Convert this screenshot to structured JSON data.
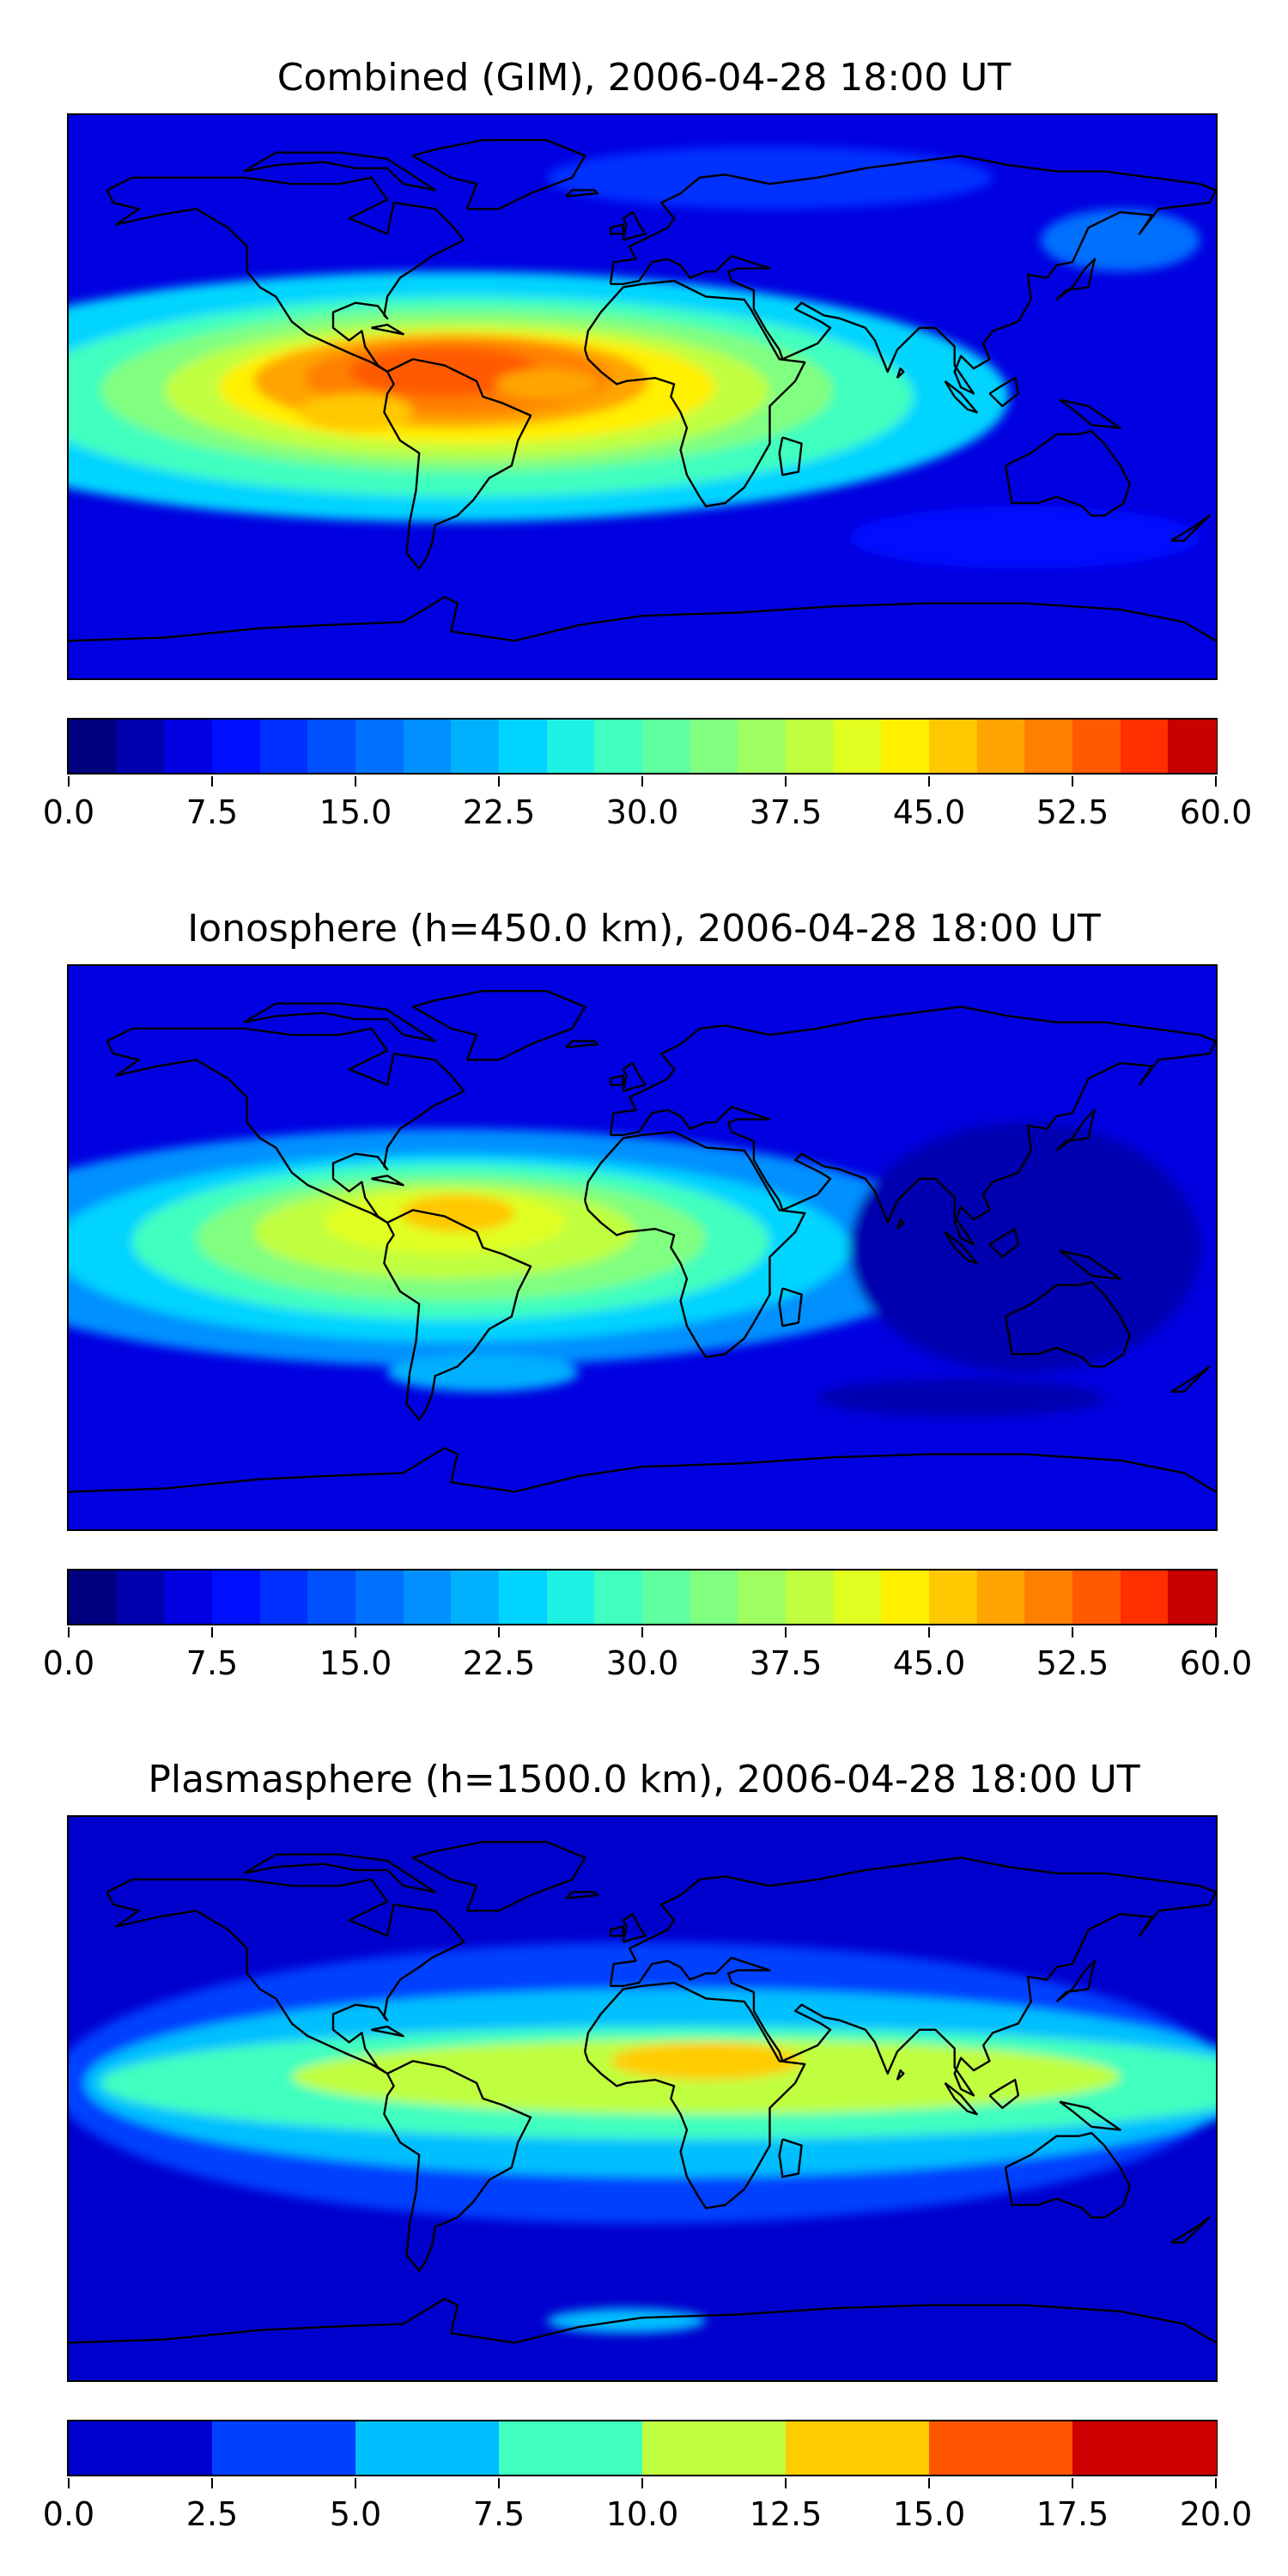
{
  "chart_data": [
    {
      "type": "heatmap",
      "title": "Combined (GIM), 2006-04-28 18:00 UT",
      "colorbar": {
        "min": 0.0,
        "max": 60.0,
        "step": 2.5,
        "ticks": [
          "0.0",
          "7.5",
          "15.0",
          "22.5",
          "30.0",
          "37.5",
          "45.0",
          "52.5",
          "60.0"
        ]
      },
      "grid": false,
      "regions": [
        {
          "label": "peak over northern South America",
          "value": 52
        },
        {
          "label": "equatorial Atlantic",
          "value": 45
        },
        {
          "label": "eastern Pacific west of South America",
          "value": 37
        },
        {
          "label": "background (Asia-Pacific, poles)",
          "value": 10
        }
      ]
    },
    {
      "type": "heatmap",
      "title": "Ionosphere  (h=450.0 km), 2006-04-28 18:00 UT",
      "colorbar": {
        "min": 0.0,
        "max": 60.0,
        "step": 2.5,
        "ticks": [
          "0.0",
          "7.5",
          "15.0",
          "22.5",
          "30.0",
          "37.5",
          "45.0",
          "52.5",
          "60.0"
        ]
      },
      "grid": false,
      "regions": [
        {
          "label": "peak over northern South America",
          "value": 44
        },
        {
          "label": "equatorial Atlantic",
          "value": 36
        },
        {
          "label": "background (Asia-Pacific, poles)",
          "value": 5
        }
      ]
    },
    {
      "type": "heatmap",
      "title": "Plasmasphere (h=1500.0 km), 2006-04-28 18:00 UT",
      "colorbar": {
        "min": 0.0,
        "max": 20.0,
        "step": 2.5,
        "ticks": [
          "0.0",
          "2.5",
          "5.0",
          "7.5",
          "10.0",
          "12.5",
          "15.0",
          "17.5",
          "20.0"
        ]
      },
      "grid": false,
      "regions": [
        {
          "label": "central Africa",
          "value": 13
        },
        {
          "label": "equatorial belt",
          "value": 11
        },
        {
          "label": "mid-latitude bands",
          "value": 6
        },
        {
          "label": "polar regions",
          "value": 1
        }
      ]
    }
  ],
  "colors": {
    "jet_24": [
      "#00007f",
      "#0000b0",
      "#0000e0",
      "#0010ff",
      "#0030ff",
      "#0050ff",
      "#0070ff",
      "#0090ff",
      "#00b0ff",
      "#00d4ff",
      "#1ff0e4",
      "#40ffbf",
      "#60ff9f",
      "#80ff80",
      "#9fff60",
      "#c0ff40",
      "#e0ff20",
      "#fff000",
      "#ffc800",
      "#ffa400",
      "#ff8000",
      "#ff5a00",
      "#ff2f00",
      "#c80000"
    ],
    "jet_8": [
      "#0000cd",
      "#0040ff",
      "#00bfff",
      "#40ffbf",
      "#c0ff40",
      "#ffcc00",
      "#ff5500",
      "#cc0000"
    ],
    "coastline": "#000000"
  }
}
